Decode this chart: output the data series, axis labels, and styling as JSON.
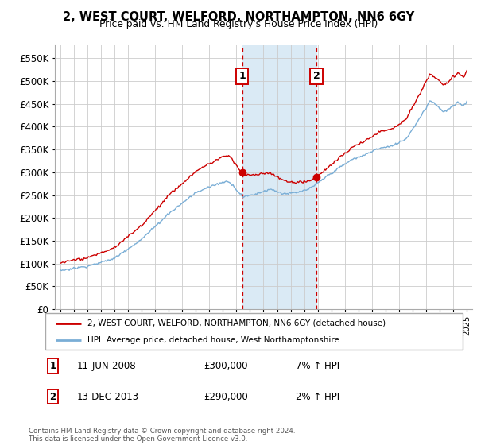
{
  "title": "2, WEST COURT, WELFORD, NORTHAMPTON, NN6 6GY",
  "subtitle": "Price paid vs. HM Land Registry's House Price Index (HPI)",
  "yticks": [
    0,
    50000,
    100000,
    150000,
    200000,
    250000,
    300000,
    350000,
    400000,
    450000,
    500000,
    550000
  ],
  "ytick_labels": [
    "£0",
    "£50K",
    "£100K",
    "£150K",
    "£200K",
    "£250K",
    "£300K",
    "£350K",
    "£400K",
    "£450K",
    "£500K",
    "£550K"
  ],
  "ylim": [
    0,
    580000
  ],
  "sale1_t": 2008.4167,
  "sale1_price": 300000,
  "sale2_t": 2013.9167,
  "sale2_price": 290000,
  "red_line_color": "#cc0000",
  "blue_line_color": "#7aaed6",
  "shade_color": "#daeaf5",
  "dashed_line_color": "#cc0000",
  "legend_label_red": "2, WEST COURT, WELFORD, NORTHAMPTON, NN6 6GY (detached house)",
  "legend_label_blue": "HPI: Average price, detached house, West Northamptonshire",
  "footer_text": "Contains HM Land Registry data © Crown copyright and database right 2024.\nThis data is licensed under the Open Government Licence v3.0.",
  "background_color": "#ffffff",
  "grid_color": "#cccccc"
}
